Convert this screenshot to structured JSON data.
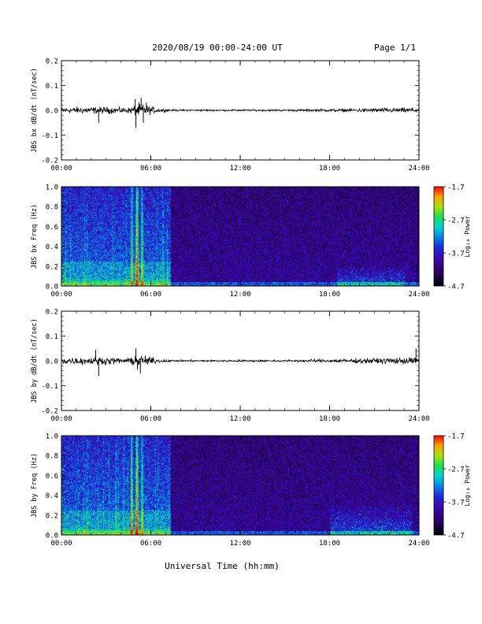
{
  "header": {
    "date_range": "2020/08/19  00:00-24:00 UT",
    "page": "Page 1/1"
  },
  "xlabel": "Universal Time (hh:mm)",
  "chart_data": [
    {
      "type": "line",
      "id": "bx-dbdt",
      "ylabel": "JBS bx dB/dt (nT/sec)",
      "xlim": [
        0,
        24
      ],
      "ylim": [
        -0.2,
        0.2
      ],
      "x_ticks": [
        "00:00",
        "06:00",
        "12:00",
        "18:00",
        "24:00"
      ],
      "y_ticks": [
        "-0.2",
        "-0.1",
        "0.0",
        "0.1",
        "0.2"
      ],
      "amplitude_profile": [
        {
          "t": 0,
          "amp": 0.018
        },
        {
          "t": 2.5,
          "amp": 0.02
        },
        {
          "t": 4.5,
          "amp": 0.016
        },
        {
          "t": 5.2,
          "amp": 0.04
        },
        {
          "t": 6.5,
          "amp": 0.012
        },
        {
          "t": 7.5,
          "amp": 0.005
        },
        {
          "t": 15,
          "amp": 0.005
        },
        {
          "t": 18.5,
          "amp": 0.008
        },
        {
          "t": 21,
          "amp": 0.013
        },
        {
          "t": 24,
          "amp": 0.015
        }
      ],
      "spikes": [
        {
          "t": 2.5,
          "y": -0.05
        },
        {
          "t": 4.95,
          "y": 0.045
        },
        {
          "t": 5.0,
          "y": -0.07
        },
        {
          "t": 5.35,
          "y": 0.05
        },
        {
          "t": 5.5,
          "y": -0.05
        },
        {
          "t": 5.7,
          "y": 0.03
        }
      ]
    },
    {
      "type": "heatmap",
      "id": "bx-spec",
      "ylabel": "JBS bx Freq (Hz)",
      "colorbar_label": "Log₁₀ Power",
      "xlim": [
        0,
        24
      ],
      "ylim": [
        0,
        1
      ],
      "x_ticks": [
        "00:00",
        "06:00",
        "12:00",
        "18:00",
        "24:00"
      ],
      "y_ticks": [
        "0.0",
        "0.2",
        "0.4",
        "0.6",
        "0.8",
        "1.0"
      ],
      "colorbar_ticks": [
        "-1.7",
        "-2.7",
        "-3.7",
        "-4.7"
      ],
      "zlim": [
        -4.7,
        -1.7
      ],
      "active_until": 7.3,
      "bright_bands": [
        4.7,
        5.0,
        5.1,
        5.4
      ],
      "evening_activity": {
        "start": 18.5,
        "end": 23,
        "max_freq": 0.2
      }
    },
    {
      "type": "line",
      "id": "by-dbdt",
      "ylabel": "JBS by dB/dt (nT/sec)",
      "xlim": [
        0,
        24
      ],
      "ylim": [
        -0.2,
        0.2
      ],
      "x_ticks": [
        "00:00",
        "06:00",
        "12:00",
        "18:00",
        "24:00"
      ],
      "y_ticks": [
        "-0.2",
        "-0.1",
        "0.0",
        "0.1",
        "0.2"
      ],
      "amplitude_profile": [
        {
          "t": 0,
          "amp": 0.02
        },
        {
          "t": 2.5,
          "amp": 0.022
        },
        {
          "t": 4.5,
          "amp": 0.015
        },
        {
          "t": 5.2,
          "amp": 0.035
        },
        {
          "t": 6.5,
          "amp": 0.012
        },
        {
          "t": 7.5,
          "amp": 0.005
        },
        {
          "t": 15,
          "amp": 0.006
        },
        {
          "t": 18.5,
          "amp": 0.01
        },
        {
          "t": 21,
          "amp": 0.016
        },
        {
          "t": 24,
          "amp": 0.02
        }
      ],
      "spikes": [
        {
          "t": 2.5,
          "y": -0.06
        },
        {
          "t": 2.3,
          "y": 0.045
        },
        {
          "t": 5.0,
          "y": 0.05
        },
        {
          "t": 5.3,
          "y": -0.05
        },
        {
          "t": 5.1,
          "y": -0.035
        },
        {
          "t": 23.8,
          "y": 0.05
        }
      ]
    },
    {
      "type": "heatmap",
      "id": "by-spec",
      "ylabel": "JBS by Freq (Hz)",
      "colorbar_label": "Log₁₀ Power",
      "xlim": [
        0,
        24
      ],
      "ylim": [
        0,
        1
      ],
      "x_ticks": [
        "00:00",
        "06:00",
        "12:00",
        "18:00",
        "24:00"
      ],
      "y_ticks": [
        "0.0",
        "0.2",
        "0.4",
        "0.6",
        "0.8",
        "1.0"
      ],
      "colorbar_ticks": [
        "-1.7",
        "-2.7",
        "-3.7",
        "-4.7"
      ],
      "zlim": [
        -4.7,
        -1.7
      ],
      "active_until": 7.3,
      "bright_bands": [
        4.7,
        5.0,
        5.1,
        5.4
      ],
      "evening_activity": {
        "start": 18.0,
        "end": 23.5,
        "max_freq": 0.3
      }
    }
  ]
}
